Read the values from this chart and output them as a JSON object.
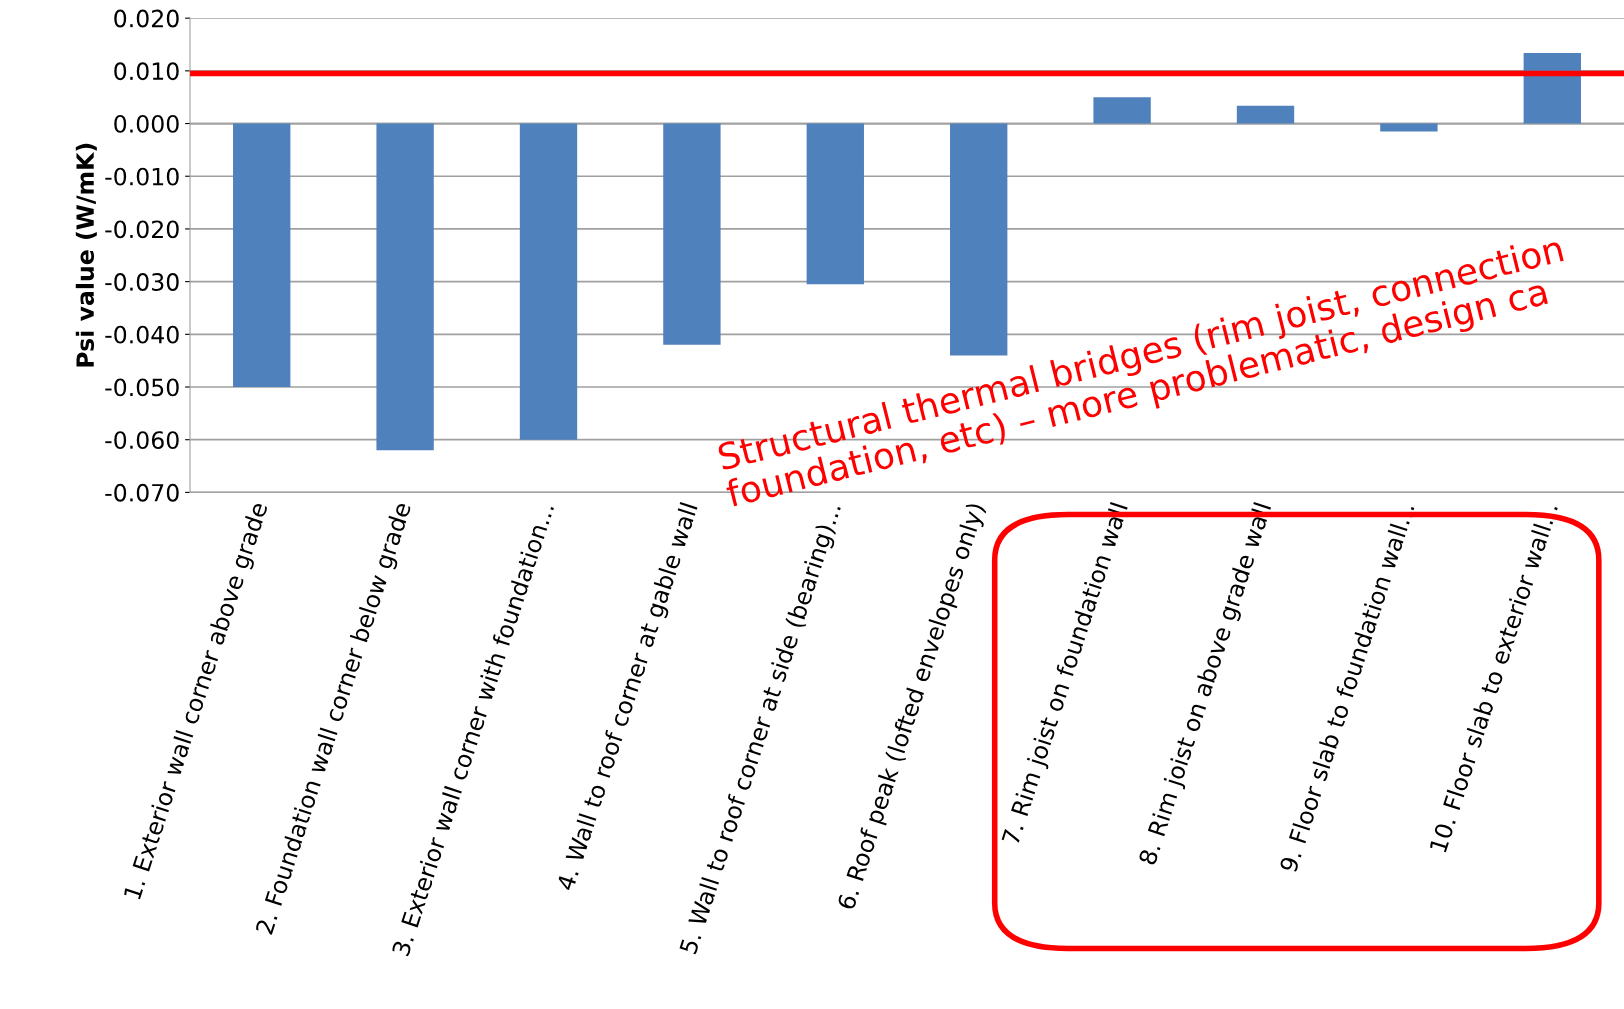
{
  "chart_data": {
    "type": "bar",
    "ylabel": "Psi value (W/mK)",
    "categories": [
      "1. Exterior wall corner above grade",
      "2. Foundation wall corner below grade",
      "3. Exterior wall corner with foundation...",
      "4. Wall to roof corner at gable wall",
      "5. Wall to roof corner at side (bearing)...",
      "6. Roof peak (lofted envelopes only)",
      "7. Rim joist on foundation wall",
      "8. Rim joist on above grade wall",
      "9. Floor slab to foundation wall...",
      "10. Floor slab to exterior wall..."
    ],
    "values": [
      -0.05,
      -0.062,
      -0.06,
      -0.042,
      -0.0305,
      -0.044,
      0.005,
      0.0034,
      -0.0015,
      0.0134
    ],
    "color": "#4f81bd",
    "ylim": [
      -0.07,
      0.02
    ],
    "yticks": [
      {
        "value": -0.07,
        "label": "-0.070"
      },
      {
        "value": -0.06,
        "label": "-0.060"
      },
      {
        "value": -0.05,
        "label": "-0.050"
      },
      {
        "value": -0.04,
        "label": "-0.040"
      },
      {
        "value": -0.03,
        "label": "-0.030"
      },
      {
        "value": -0.02,
        "label": "-0.020"
      },
      {
        "value": -0.01,
        "label": "-0.010"
      },
      {
        "value": 0,
        "label": "0.000"
      },
      {
        "value": 0.01,
        "label": "0.010"
      },
      {
        "value": 0.02,
        "label": "0.020"
      }
    ],
    "grid": "y",
    "ref_lines": [
      {
        "axis": "y",
        "value": 0.0095,
        "color": "#ff0000"
      }
    ],
    "annotations": [
      "Structural thermal bridges (rim joist, connection\nfoundation, etc) – more problematic, design ca"
    ]
  }
}
